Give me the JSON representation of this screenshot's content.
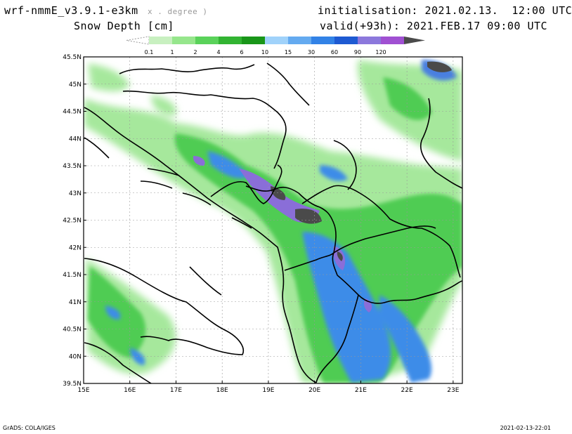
{
  "header": {
    "model": "wrf-nmmE_v3.9.1-e3km",
    "model_sub": "x . degree )",
    "variable": "Snow Depth [cm]",
    "init": "initialisation: 2021.02.13.  12:00 UTC",
    "valid": "valid(+93h): 2021.FEB.17 09:00 UTC"
  },
  "colorbar": {
    "labels": [
      "0.1",
      "1",
      "2",
      "4",
      "6",
      "10",
      "15",
      "30",
      "60",
      "90",
      "120"
    ],
    "colors": [
      "#c8f0c0",
      "#96e68c",
      "#5ad25a",
      "#32b432",
      "#199619",
      "#a0d2fa",
      "#64aaf0",
      "#3282e6",
      "#1e5ad2",
      "#8c78dc",
      "#a050d2",
      "#4b4b4b"
    ]
  },
  "axes": {
    "lat_labels": [
      "45.5N",
      "45N",
      "44.5N",
      "44N",
      "43.5N",
      "43N",
      "42.5N",
      "42N",
      "41.5N",
      "41N",
      "40.5N",
      "40N",
      "39.5N"
    ],
    "lon_labels": [
      "15E",
      "16E",
      "17E",
      "18E",
      "19E",
      "20E",
      "21E",
      "22E",
      "23E"
    ]
  },
  "footer": {
    "left": "GrADS: COLA/IGES",
    "right": "2021-02-13-22:01"
  }
}
